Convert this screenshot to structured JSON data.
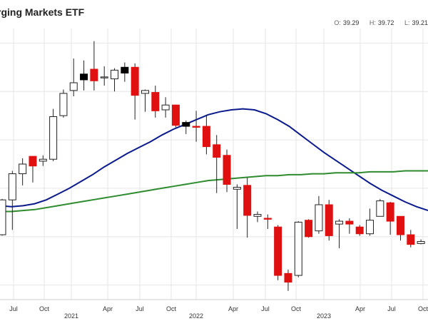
{
  "chart_data": {
    "type": "candlestick",
    "title": "rging Markets ETF",
    "ohlc": {
      "o_label": "O:",
      "o_value": "39.29",
      "h_label": "H:",
      "h_value": "39.72",
      "l_label": "L:",
      "l_value": "39.21"
    },
    "x_ticks": [
      "Jul",
      "Oct",
      "2021",
      "Apr",
      "Jul",
      "Oct",
      "2022",
      "Apr",
      "Jul",
      "Oct",
      "2023",
      "Apr",
      "Jul",
      "Oct"
    ],
    "x_tick_kinds": [
      "minor",
      "minor",
      "major",
      "minor",
      "minor",
      "minor",
      "major",
      "minor",
      "minor",
      "minor",
      "major",
      "minor",
      "minor",
      "minor"
    ],
    "grid": true,
    "candles": [
      {
        "o": 40.2,
        "h": 43.9,
        "l": 40.1,
        "c": 43.8,
        "color": "up"
      },
      {
        "o": 43.8,
        "h": 46.8,
        "l": 40.7,
        "c": 46.5,
        "color": "up"
      },
      {
        "o": 46.5,
        "h": 48.1,
        "l": 45.3,
        "c": 47.5,
        "color": "up"
      },
      {
        "o": 47.3,
        "h": 48.3,
        "l": 45.6,
        "c": 48.3,
        "color": "down"
      },
      {
        "o": 47.8,
        "h": 48.4,
        "l": 47.3,
        "c": 48.0,
        "color": "up"
      },
      {
        "o": 48.0,
        "h": 53.2,
        "l": 47.8,
        "c": 52.4,
        "color": "up"
      },
      {
        "o": 52.5,
        "h": 55.2,
        "l": 52.3,
        "c": 54.8,
        "color": "up"
      },
      {
        "o": 55.1,
        "h": 58.4,
        "l": 54.5,
        "c": 55.9,
        "color": "up"
      },
      {
        "o": 56.2,
        "h": 58.2,
        "l": 55.1,
        "c": 56.8,
        "color": "black"
      },
      {
        "o": 57.3,
        "h": 60.2,
        "l": 55.1,
        "c": 56.1,
        "color": "down"
      },
      {
        "o": 56.4,
        "h": 57.6,
        "l": 55.6,
        "c": 56.5,
        "color": "up"
      },
      {
        "o": 56.3,
        "h": 57.4,
        "l": 55.0,
        "c": 57.2,
        "color": "up"
      },
      {
        "o": 57.5,
        "h": 58.0,
        "l": 56.0,
        "c": 56.9,
        "color": "black"
      },
      {
        "o": 57.5,
        "h": 57.9,
        "l": 52.1,
        "c": 54.6,
        "color": "down"
      },
      {
        "o": 55.1,
        "h": 55.2,
        "l": 52.9,
        "c": 54.8,
        "color": "up"
      },
      {
        "o": 54.9,
        "h": 55.6,
        "l": 52.3,
        "c": 53.0,
        "color": "down"
      },
      {
        "o": 53.1,
        "h": 54.4,
        "l": 52.3,
        "c": 53.6,
        "color": "up"
      },
      {
        "o": 53.6,
        "h": 53.6,
        "l": 51.3,
        "c": 51.5,
        "color": "down"
      },
      {
        "o": 51.8,
        "h": 52.0,
        "l": 50.6,
        "c": 51.4,
        "color": "black"
      },
      {
        "o": 51.4,
        "h": 53.0,
        "l": 49.8,
        "c": 51.3,
        "color": "down"
      },
      {
        "o": 51.4,
        "h": 52.6,
        "l": 48.5,
        "c": 49.3,
        "color": "down"
      },
      {
        "o": 49.5,
        "h": 50.5,
        "l": 44.5,
        "c": 48.2,
        "color": "down"
      },
      {
        "o": 48.4,
        "h": 49.0,
        "l": 44.6,
        "c": 45.4,
        "color": "down"
      },
      {
        "o": 45.1,
        "h": 45.4,
        "l": 40.8,
        "c": 44.9,
        "color": "up"
      },
      {
        "o": 45.3,
        "h": 46.1,
        "l": 39.9,
        "c": 42.2,
        "color": "down"
      },
      {
        "o": 42.3,
        "h": 42.6,
        "l": 41.5,
        "c": 42.1,
        "color": "up"
      },
      {
        "o": 41.9,
        "h": 42.3,
        "l": 40.8,
        "c": 41.8,
        "color": "down"
      },
      {
        "o": 41.0,
        "h": 41.2,
        "l": 35.5,
        "c": 36.0,
        "color": "down"
      },
      {
        "o": 36.2,
        "h": 36.6,
        "l": 34.4,
        "c": 35.3,
        "color": "down"
      },
      {
        "o": 36.0,
        "h": 41.6,
        "l": 35.8,
        "c": 41.5,
        "color": "up"
      },
      {
        "o": 41.7,
        "h": 41.8,
        "l": 39.9,
        "c": 40.0,
        "color": "down"
      },
      {
        "o": 40.6,
        "h": 44.2,
        "l": 40.3,
        "c": 43.3,
        "color": "up"
      },
      {
        "o": 43.3,
        "h": 43.8,
        "l": 39.6,
        "c": 40.1,
        "color": "down"
      },
      {
        "o": 41.3,
        "h": 41.8,
        "l": 38.8,
        "c": 41.6,
        "color": "up"
      },
      {
        "o": 41.6,
        "h": 41.9,
        "l": 40.3,
        "c": 41.3,
        "color": "down"
      },
      {
        "o": 41.0,
        "h": 41.2,
        "l": 40.1,
        "c": 40.3,
        "color": "down"
      },
      {
        "o": 40.3,
        "h": 42.9,
        "l": 40.1,
        "c": 41.7,
        "color": "up"
      },
      {
        "o": 42.1,
        "h": 43.9,
        "l": 42.1,
        "c": 43.7,
        "color": "up"
      },
      {
        "o": 43.5,
        "h": 43.6,
        "l": 40.2,
        "c": 41.6,
        "color": "down"
      },
      {
        "o": 42.1,
        "h": 42.1,
        "l": 39.6,
        "c": 40.2,
        "color": "down"
      },
      {
        "o": 40.2,
        "h": 40.7,
        "l": 38.9,
        "c": 39.2,
        "color": "down"
      },
      {
        "o": 39.29,
        "h": 39.72,
        "l": 39.21,
        "c": 39.5,
        "color": "up"
      }
    ],
    "series": [
      {
        "color": "#0a1a8c",
        "values": [
          43.2,
          43.1,
          43.2,
          43.4,
          43.8,
          44.4,
          45.0,
          45.7,
          46.4,
          47.2,
          47.9,
          48.6,
          49.2,
          49.8,
          50.5,
          51.1,
          51.6,
          52.1,
          52.6,
          52.9,
          53.1,
          53.2,
          53.1,
          52.7,
          52.1,
          51.4,
          50.5,
          49.6,
          48.7,
          47.9,
          47.1,
          46.3,
          45.5,
          44.8,
          44.2,
          43.6,
          43.1,
          42.7
        ]
      },
      {
        "color": "#2e8b2e",
        "values": [
          42.6,
          42.6,
          42.7,
          42.8,
          43.0,
          43.2,
          43.4,
          43.6,
          43.8,
          44.0,
          44.2,
          44.4,
          44.6,
          44.8,
          45.0,
          45.2,
          45.4,
          45.6,
          45.8,
          45.9,
          46.0,
          46.1,
          46.2,
          46.3,
          46.3,
          46.4,
          46.4,
          46.5,
          46.5,
          46.6,
          46.6,
          46.6,
          46.7,
          46.7,
          46.7,
          46.8,
          46.8,
          46.8
        ]
      }
    ],
    "colors": {
      "up_fill": "#ffffff",
      "up_stroke": "#222222",
      "down_fill": "#e01010",
      "black_fill": "#000000",
      "grid": "#e6e6e6"
    }
  }
}
